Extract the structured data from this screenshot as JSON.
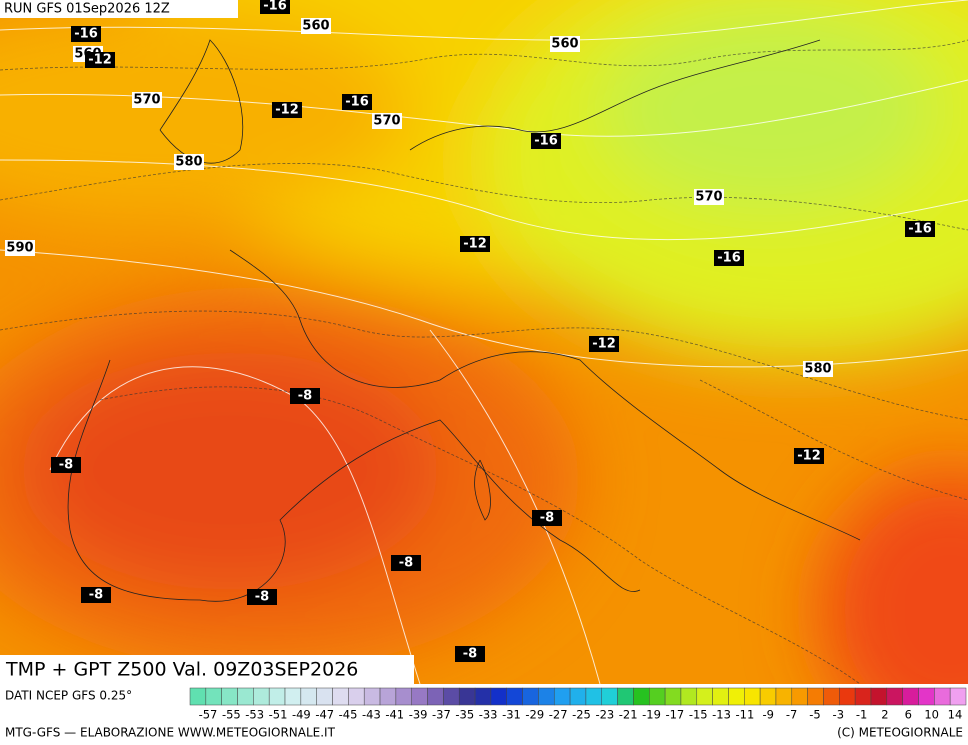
{
  "header": {
    "run": "RUN GFS 01Sep2026 12Z"
  },
  "map": {
    "temperature_labels": [
      "-16",
      "-16",
      "-12",
      "-12",
      "-16",
      "-16",
      "-12",
      "-16",
      "-16",
      "-12",
      "-8",
      "-8",
      "-12",
      "-8",
      "-8",
      "-8",
      "-8",
      "-8"
    ],
    "height_labels": [
      "560",
      "560",
      "560",
      "570",
      "570",
      "580",
      "570",
      "590",
      "580"
    ]
  },
  "footer": {
    "title": "TMP + GPT Z500 Val. 09Z03SEP2026",
    "source": "DATI NCEP GFS 0.25°",
    "scale_labels": [
      "-57",
      "-55",
      "-53",
      "-51",
      "-49",
      "-47",
      "-45",
      "-43",
      "-41",
      "-39",
      "-37",
      "-35",
      "-33",
      "-31",
      "-29",
      "-27",
      "-25",
      "-23",
      "-21",
      "-19",
      "-17",
      "-15",
      "-13",
      "-11",
      "-9",
      "-7",
      "-5",
      "-3",
      "-1",
      "2",
      "6",
      "10",
      "14"
    ],
    "credit": "MTG-GFS — ELABORAZIONE WWW.METEOGIORNALE.IT",
    "copyright": "(C) METEOGIORNALE"
  }
}
